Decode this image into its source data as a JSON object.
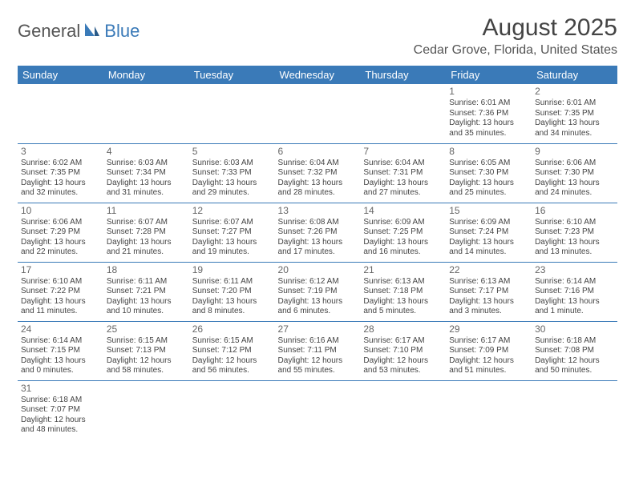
{
  "logo": {
    "part1": "General",
    "part2": "Blue"
  },
  "title": "August 2025",
  "location": "Cedar Grove, Florida, United States",
  "colors": {
    "header_bg": "#3a7ab8",
    "header_fg": "#ffffff",
    "border": "#3a7ab8",
    "text": "#444444"
  },
  "day_headers": [
    "Sunday",
    "Monday",
    "Tuesday",
    "Wednesday",
    "Thursday",
    "Friday",
    "Saturday"
  ],
  "weeks": [
    [
      null,
      null,
      null,
      null,
      null,
      {
        "n": "1",
        "sr": "6:01 AM",
        "ss": "7:36 PM",
        "dl": "13 hours and 35 minutes."
      },
      {
        "n": "2",
        "sr": "6:01 AM",
        "ss": "7:35 PM",
        "dl": "13 hours and 34 minutes."
      }
    ],
    [
      {
        "n": "3",
        "sr": "6:02 AM",
        "ss": "7:35 PM",
        "dl": "13 hours and 32 minutes."
      },
      {
        "n": "4",
        "sr": "6:03 AM",
        "ss": "7:34 PM",
        "dl": "13 hours and 31 minutes."
      },
      {
        "n": "5",
        "sr": "6:03 AM",
        "ss": "7:33 PM",
        "dl": "13 hours and 29 minutes."
      },
      {
        "n": "6",
        "sr": "6:04 AM",
        "ss": "7:32 PM",
        "dl": "13 hours and 28 minutes."
      },
      {
        "n": "7",
        "sr": "6:04 AM",
        "ss": "7:31 PM",
        "dl": "13 hours and 27 minutes."
      },
      {
        "n": "8",
        "sr": "6:05 AM",
        "ss": "7:30 PM",
        "dl": "13 hours and 25 minutes."
      },
      {
        "n": "9",
        "sr": "6:06 AM",
        "ss": "7:30 PM",
        "dl": "13 hours and 24 minutes."
      }
    ],
    [
      {
        "n": "10",
        "sr": "6:06 AM",
        "ss": "7:29 PM",
        "dl": "13 hours and 22 minutes."
      },
      {
        "n": "11",
        "sr": "6:07 AM",
        "ss": "7:28 PM",
        "dl": "13 hours and 21 minutes."
      },
      {
        "n": "12",
        "sr": "6:07 AM",
        "ss": "7:27 PM",
        "dl": "13 hours and 19 minutes."
      },
      {
        "n": "13",
        "sr": "6:08 AM",
        "ss": "7:26 PM",
        "dl": "13 hours and 17 minutes."
      },
      {
        "n": "14",
        "sr": "6:09 AM",
        "ss": "7:25 PM",
        "dl": "13 hours and 16 minutes."
      },
      {
        "n": "15",
        "sr": "6:09 AM",
        "ss": "7:24 PM",
        "dl": "13 hours and 14 minutes."
      },
      {
        "n": "16",
        "sr": "6:10 AM",
        "ss": "7:23 PM",
        "dl": "13 hours and 13 minutes."
      }
    ],
    [
      {
        "n": "17",
        "sr": "6:10 AM",
        "ss": "7:22 PM",
        "dl": "13 hours and 11 minutes."
      },
      {
        "n": "18",
        "sr": "6:11 AM",
        "ss": "7:21 PM",
        "dl": "13 hours and 10 minutes."
      },
      {
        "n": "19",
        "sr": "6:11 AM",
        "ss": "7:20 PM",
        "dl": "13 hours and 8 minutes."
      },
      {
        "n": "20",
        "sr": "6:12 AM",
        "ss": "7:19 PM",
        "dl": "13 hours and 6 minutes."
      },
      {
        "n": "21",
        "sr": "6:13 AM",
        "ss": "7:18 PM",
        "dl": "13 hours and 5 minutes."
      },
      {
        "n": "22",
        "sr": "6:13 AM",
        "ss": "7:17 PM",
        "dl": "13 hours and 3 minutes."
      },
      {
        "n": "23",
        "sr": "6:14 AM",
        "ss": "7:16 PM",
        "dl": "13 hours and 1 minute."
      }
    ],
    [
      {
        "n": "24",
        "sr": "6:14 AM",
        "ss": "7:15 PM",
        "dl": "13 hours and 0 minutes."
      },
      {
        "n": "25",
        "sr": "6:15 AM",
        "ss": "7:13 PM",
        "dl": "12 hours and 58 minutes."
      },
      {
        "n": "26",
        "sr": "6:15 AM",
        "ss": "7:12 PM",
        "dl": "12 hours and 56 minutes."
      },
      {
        "n": "27",
        "sr": "6:16 AM",
        "ss": "7:11 PM",
        "dl": "12 hours and 55 minutes."
      },
      {
        "n": "28",
        "sr": "6:17 AM",
        "ss": "7:10 PM",
        "dl": "12 hours and 53 minutes."
      },
      {
        "n": "29",
        "sr": "6:17 AM",
        "ss": "7:09 PM",
        "dl": "12 hours and 51 minutes."
      },
      {
        "n": "30",
        "sr": "6:18 AM",
        "ss": "7:08 PM",
        "dl": "12 hours and 50 minutes."
      }
    ],
    [
      {
        "n": "31",
        "sr": "6:18 AM",
        "ss": "7:07 PM",
        "dl": "12 hours and 48 minutes."
      },
      null,
      null,
      null,
      null,
      null,
      null
    ]
  ],
  "labels": {
    "sunrise": "Sunrise:",
    "sunset": "Sunset:",
    "daylight": "Daylight:"
  }
}
